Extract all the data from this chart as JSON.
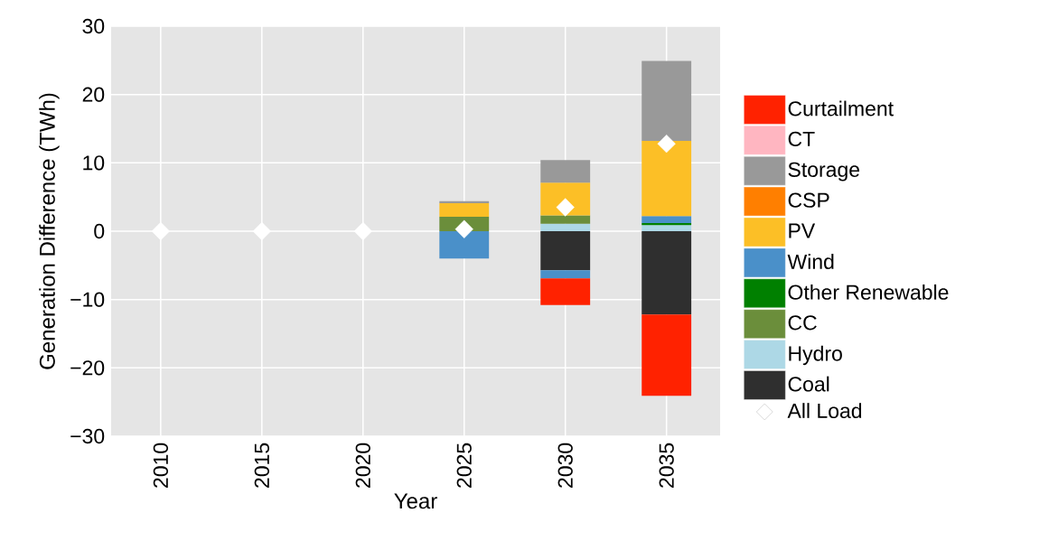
{
  "chart_data": {
    "type": "bar",
    "stacked": true,
    "xlabel": "Year",
    "ylabel": "Generation Difference (TWh)",
    "categories": [
      "2010",
      "2015",
      "2020",
      "2025",
      "2030",
      "2035"
    ],
    "ylim": [
      -30,
      30
    ],
    "yticks": [
      {
        "value": -30,
        "label": "−30"
      },
      {
        "value": -20,
        "label": "−20"
      },
      {
        "value": -10,
        "label": "−10"
      },
      0,
      10,
      20,
      30
    ],
    "grid": true,
    "legend": "right",
    "series": [
      {
        "name": "Coal",
        "color": "#2f2f2f",
        "values": [
          0,
          0,
          0,
          0,
          -5.7,
          -12.2
        ]
      },
      {
        "name": "Hydro",
        "color": "#add8e6",
        "values": [
          0,
          0,
          0,
          0,
          1.1,
          0.9
        ]
      },
      {
        "name": "CC",
        "color": "#6b8e3b",
        "values": [
          0,
          0,
          0,
          2.1,
          1.2,
          0
        ]
      },
      {
        "name": "Other Renewable",
        "color": "#008000",
        "values": [
          0,
          0,
          0,
          0,
          0,
          0.3
        ]
      },
      {
        "name": "Wind",
        "color": "#4a90c9",
        "values": [
          0,
          0,
          0,
          -4.0,
          -1.2,
          1.0
        ]
      },
      {
        "name": "PV",
        "color": "#fcbf26",
        "values": [
          0,
          0,
          0,
          2.0,
          4.8,
          11.0
        ]
      },
      {
        "name": "CSP",
        "color": "#ff7f00",
        "values": [
          0,
          0,
          0,
          0,
          0,
          0
        ]
      },
      {
        "name": "Storage",
        "color": "#999999",
        "values": [
          0,
          0,
          0,
          0.3,
          3.3,
          11.7
        ]
      },
      {
        "name": "CT",
        "color": "#ffb6c1",
        "values": [
          0,
          0,
          0,
          0,
          0,
          0
        ]
      },
      {
        "name": "Curtailment",
        "color": "#ff2200",
        "values": [
          0,
          0,
          0,
          0,
          -3.9,
          -11.9
        ]
      },
      {
        "name": "All Load",
        "type": "scatter",
        "marker": "diamond",
        "color": "#ffffff",
        "values": [
          0,
          0,
          0,
          0.3,
          3.5,
          12.8
        ]
      }
    ]
  }
}
